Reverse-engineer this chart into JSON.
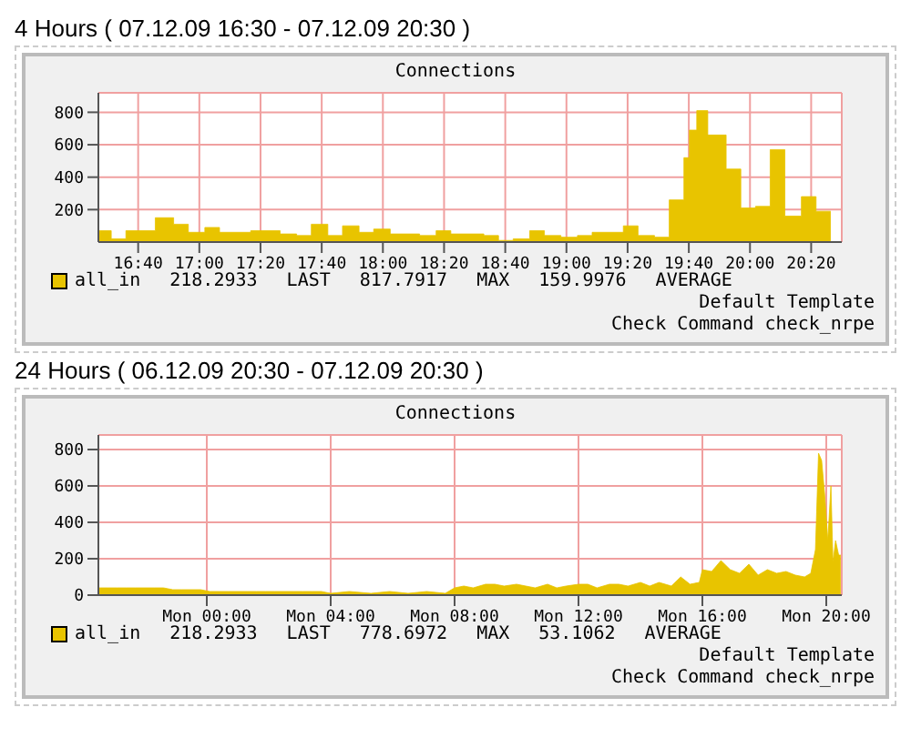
{
  "chart_data": [
    {
      "type": "area",
      "title": "4 Hours ( 07.12.09 16:30 - 07.12.09 20:30 )",
      "subtitle": "Connections",
      "x": [
        16.45,
        16.52,
        16.52,
        16.6,
        16.6,
        16.76,
        16.76,
        16.86,
        16.86,
        16.94,
        16.94,
        17.03,
        17.03,
        17.11,
        17.11,
        17.28,
        17.28,
        17.44,
        17.44,
        17.53,
        17.53,
        17.61,
        17.61,
        17.7,
        17.7,
        17.78,
        17.78,
        17.87,
        17.87,
        17.95,
        17.95,
        18.04,
        18.04,
        18.2,
        18.2,
        18.29,
        18.29,
        18.37,
        18.37,
        18.55,
        18.55,
        18.63,
        18.63,
        18.71,
        18.71,
        18.8,
        18.8,
        18.88,
        18.88,
        18.97,
        18.97,
        19.06,
        19.06,
        19.14,
        19.14,
        19.31,
        19.31,
        19.39,
        19.39,
        19.48,
        19.48,
        19.56,
        19.56,
        19.64,
        19.64,
        19.67,
        19.67,
        19.71,
        19.71,
        19.77,
        19.77,
        19.87,
        19.87,
        19.95,
        19.95,
        20.03,
        20.03,
        20.11,
        20.11,
        20.19,
        20.19,
        20.28,
        20.28,
        20.36,
        20.36,
        20.44
      ],
      "series": [
        {
          "name": "all_in",
          "color": "#e8c400",
          "values": [
            70,
            70,
            20,
            20,
            70,
            70,
            150,
            150,
            110,
            110,
            60,
            60,
            90,
            90,
            60,
            60,
            70,
            70,
            50,
            50,
            40,
            40,
            110,
            110,
            40,
            40,
            100,
            100,
            60,
            60,
            80,
            80,
            50,
            50,
            40,
            40,
            70,
            70,
            50,
            50,
            40,
            40,
            10,
            10,
            20,
            20,
            70,
            70,
            40,
            40,
            30,
            30,
            40,
            40,
            60,
            60,
            100,
            100,
            40,
            40,
            30,
            30,
            260,
            260,
            520,
            520,
            690,
            690,
            810,
            810,
            660,
            660,
            450,
            450,
            210,
            210,
            220,
            220,
            570,
            570,
            160,
            160,
            280,
            280,
            190,
            190
          ]
        }
      ],
      "xlim": [
        16.45,
        20.5
      ],
      "xticks": [
        {
          "value": 16.6667,
          "label": "16:40"
        },
        {
          "value": 17,
          "label": "17:00"
        },
        {
          "value": 17.3333,
          "label": "17:20"
        },
        {
          "value": 17.6667,
          "label": "17:40"
        },
        {
          "value": 18,
          "label": "18:00"
        },
        {
          "value": 18.3333,
          "label": "18:20"
        },
        {
          "value": 18.6667,
          "label": "18:40"
        },
        {
          "value": 19,
          "label": "19:00"
        },
        {
          "value": 19.3333,
          "label": "19:20"
        },
        {
          "value": 19.6667,
          "label": "19:40"
        },
        {
          "value": 20,
          "label": "20:00"
        },
        {
          "value": 20.3333,
          "label": "20:20"
        }
      ],
      "ylim": [
        0,
        920
      ],
      "yticks": [
        200,
        400,
        600,
        800
      ],
      "grid": true,
      "legend": "bottom",
      "annotations": [
        "218.2933",
        "LAST",
        "817.7917",
        "MAX",
        "159.9976",
        "AVERAGE",
        "Default Template",
        "Check Command check_nrpe"
      ]
    },
    {
      "type": "area",
      "title": "24 Hours ( 06.12.09 20:30 - 07.12.09 20:30 )",
      "subtitle": "Connections",
      "x": [
        "--12-06T20:30",
        "--12-06T20:48",
        "--12-06T21:06",
        "--12-06T21:24",
        "--12-06T21:42",
        "--12-06T22:00",
        "--12-06T22:18",
        "--12-06T22:36",
        "--12-06T22:54",
        "--12-06T23:12",
        "--12-06T23:30",
        "--12-06T23:48",
        "--12-07T00:06",
        "--12-07T00:24",
        "--12-07T00:42",
        "--12-07T01:00",
        "--12-07T01:18",
        "--12-07T01:36",
        "--12-07T01:54",
        "--12-07T02:12",
        "--12-07T02:30",
        "--12-07T02:48",
        "--12-07T03:06",
        "--12-07T03:24",
        "--12-07T03:42",
        "--12-07T04:00",
        "--12-07T04:36",
        "--12-07T05:18",
        "--12-07T05:54",
        "--12-07T06:30",
        "--12-07T07:06",
        "--12-07T07:42",
        "--12-07T08:00",
        "--12-07T08:18",
        "--12-07T08:36",
        "--12-07T09:00",
        "--12-07T09:18",
        "--12-07T09:36",
        "--12-07T10:00",
        "--12-07T10:18",
        "--12-07T10:36",
        "--12-07T11:00",
        "--12-07T11:18",
        "--12-07T11:36",
        "--12-07T12:00",
        "--12-07T12:18",
        "--12-07T12:36",
        "--12-07T13:00",
        "--12-07T13:18",
        "--12-07T13:36",
        "--12-07T14:00",
        "--12-07T14:18",
        "--12-07T14:36",
        "--12-07T15:00",
        "--12-07T15:18",
        "--12-07T15:36",
        "--12-07T15:54",
        "--12-07T16:00",
        "--12-07T16:18",
        "--12-07T16:36",
        "--12-07T16:54",
        "--12-07T17:12",
        "--12-07T17:30",
        "--12-07T17:48",
        "--12-07T18:06",
        "--12-07T18:24",
        "--12-07T18:42",
        "--12-07T19:00",
        "--12-07T19:18",
        "--12-07T19:30",
        "--12-07T19:39",
        "--12-07T19:45",
        "--12-07T19:51",
        "--12-07T19:57",
        "--12-07T20:03",
        "--12-07T20:09",
        "--12-07T20:13",
        "--12-07T20:18",
        "--12-07T20:24",
        "--12-07T20:28"
      ],
      "series": [
        {
          "name": "all_in",
          "color": "#e8c400",
          "values": [
            40,
            40,
            40,
            40,
            40,
            40,
            40,
            40,
            30,
            30,
            30,
            30,
            20,
            20,
            20,
            20,
            20,
            20,
            20,
            20,
            20,
            20,
            20,
            20,
            20,
            10,
            20,
            10,
            20,
            10,
            20,
            10,
            40,
            50,
            40,
            60,
            60,
            50,
            60,
            50,
            40,
            60,
            40,
            50,
            60,
            60,
            40,
            60,
            60,
            50,
            70,
            50,
            70,
            50,
            100,
            60,
            70,
            140,
            130,
            190,
            140,
            120,
            170,
            110,
            140,
            120,
            130,
            110,
            100,
            120,
            250,
            780,
            740,
            550,
            300,
            600,
            180,
            300,
            220,
            220
          ]
        }
      ],
      "xlim": [
        "--12-06T20:30",
        "--12-07T20:30"
      ],
      "xticks": [
        {
          "value": "--12-07T00:00",
          "label": "Mon 00:00"
        },
        {
          "value": "--12-07T04:00",
          "label": "Mon 04:00"
        },
        {
          "value": "--12-07T08:00",
          "label": "Mon 08:00"
        },
        {
          "value": "--12-07T12:00",
          "label": "Mon 12:00"
        },
        {
          "value": "--12-07T16:00",
          "label": "Mon 16:00"
        },
        {
          "value": "--12-07T20:00",
          "label": "Mon 20:00"
        }
      ],
      "ylim": [
        0,
        880
      ],
      "yticks": [
        0,
        200,
        400,
        600,
        800
      ],
      "grid": true,
      "legend": "bottom",
      "annotations": [
        "218.2933",
        "LAST",
        "778.6972",
        "MAX",
        "53.1062",
        "AVERAGE",
        "Default Template",
        "Check Command check_nrpe"
      ]
    }
  ]
}
